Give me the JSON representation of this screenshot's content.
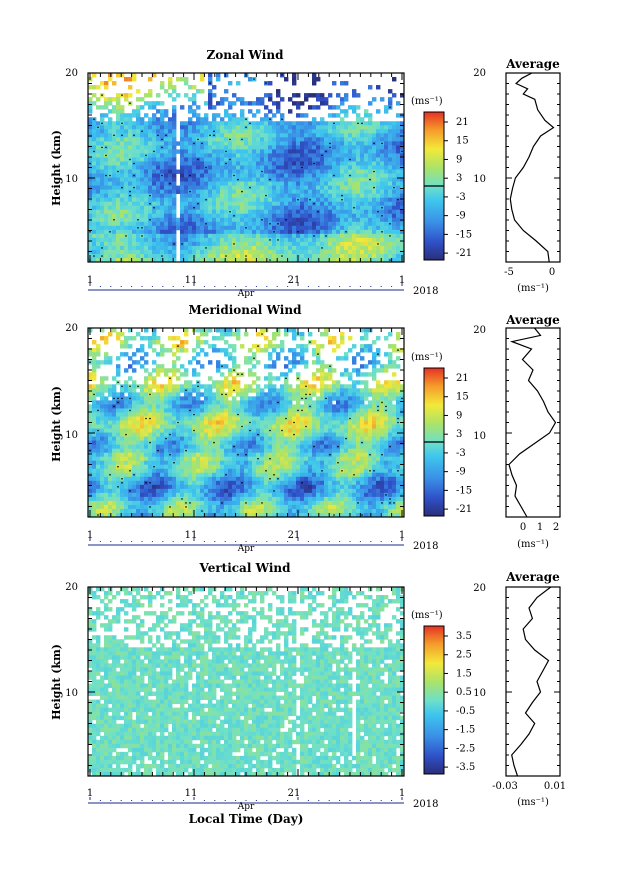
{
  "figure": {
    "xlabel": "Local Time (Day)",
    "month_label": "Apr",
    "year_label": "2018",
    "ylabel": "Height (km)",
    "avg_title": "Average"
  },
  "chart_data": [
    {
      "type": "heatmap",
      "title": "Zonal Wind",
      "xlabel": "Local Time (Day)",
      "ylabel": "Height (km)",
      "x_ticklabels": [
        "1",
        "11",
        "21",
        "1"
      ],
      "y_ticklabels": [
        "10",
        "20"
      ],
      "ylim": [
        2,
        20
      ],
      "unit": "(ms⁻¹)",
      "colorbar": {
        "ticks": [
          "21",
          "15",
          "9",
          "3",
          "-3",
          "-9",
          "-15",
          "-21"
        ],
        "range": [
          -24,
          24
        ]
      },
      "average": {
        "title": "Average",
        "xlabel": "(ms⁻¹)",
        "x_ticklabels": [
          "-5",
          "0"
        ],
        "xlim": [
          -6,
          1.5
        ],
        "profile": [
          [
            2,
            0
          ],
          [
            3,
            -0.2
          ],
          [
            4,
            -1.8
          ],
          [
            5,
            -3.6
          ],
          [
            6,
            -4.8
          ],
          [
            7,
            -5.2
          ],
          [
            8,
            -5.4
          ],
          [
            9,
            -5.1
          ],
          [
            10,
            -4.7
          ],
          [
            11,
            -3.6
          ],
          [
            12,
            -2.8
          ],
          [
            13,
            -2.2
          ],
          [
            14,
            -1.2
          ],
          [
            14.8,
            0.6
          ],
          [
            15.5,
            -0.6
          ],
          [
            16.5,
            -1.6
          ],
          [
            17.5,
            -2.0
          ],
          [
            18,
            -3.6
          ],
          [
            18.5,
            -3.0
          ],
          [
            19,
            -4.6
          ],
          [
            19.5,
            -3.8
          ],
          [
            20,
            -2.4
          ]
        ]
      }
    },
    {
      "type": "heatmap",
      "title": "Meridional Wind",
      "xlabel": "Local Time (Day)",
      "ylabel": "Height (km)",
      "x_ticklabels": [
        "1",
        "11",
        "21",
        "1"
      ],
      "y_ticklabels": [
        "10",
        "20"
      ],
      "ylim": [
        2,
        20
      ],
      "unit": "(ms⁻¹)",
      "colorbar": {
        "ticks": [
          "21",
          "15",
          "9",
          "3",
          "-3",
          "-9",
          "-15",
          "-21"
        ],
        "range": [
          -24,
          24
        ]
      },
      "average": {
        "title": "Average",
        "xlabel": "(ms⁻¹)",
        "x_ticklabels": [
          "0",
          "1",
          "2"
        ],
        "xlim": [
          -1.3,
          2.3
        ],
        "profile": [
          [
            2,
            0.1
          ],
          [
            3,
            -0.3
          ],
          [
            3.5,
            -0.5
          ],
          [
            4,
            -0.7
          ],
          [
            5,
            -0.6
          ],
          [
            6,
            -0.9
          ],
          [
            7,
            -1.1
          ],
          [
            8,
            -0.4
          ],
          [
            9,
            0.6
          ],
          [
            10,
            1.6
          ],
          [
            11,
            2.0
          ],
          [
            12,
            1.5
          ],
          [
            13,
            1.2
          ],
          [
            14,
            0.8
          ],
          [
            15,
            0.2
          ],
          [
            16,
            0.5
          ],
          [
            17,
            -0.2
          ],
          [
            18,
            0.4
          ],
          [
            18.7,
            -0.9
          ],
          [
            19.3,
            1.0
          ],
          [
            20,
            0.6
          ]
        ]
      }
    },
    {
      "type": "heatmap",
      "title": "Vertical Wind",
      "xlabel": "Local Time (Day)",
      "ylabel": "Height (km)",
      "x_ticklabels": [
        "1",
        "11",
        "21",
        "1"
      ],
      "y_ticklabels": [
        "10",
        "20"
      ],
      "ylim": [
        2,
        20
      ],
      "unit": "(ms⁻¹)",
      "colorbar": {
        "ticks": [
          "3.5",
          "2.5",
          "1.5",
          "0.5",
          "-0.5",
          "-1.5",
          "-2.5",
          "-3.5"
        ],
        "range": [
          -4,
          4
        ]
      },
      "average": {
        "title": "Average",
        "xlabel": "(ms⁻¹)",
        "x_ticklabels": [
          "-0.03",
          "0.01"
        ],
        "xlim": [
          -0.035,
          0.012
        ],
        "profile": [
          [
            2,
            -0.025
          ],
          [
            3,
            -0.028
          ],
          [
            4,
            -0.03
          ],
          [
            5,
            -0.022
          ],
          [
            6,
            -0.015
          ],
          [
            7,
            -0.01
          ],
          [
            8,
            -0.018
          ],
          [
            9,
            -0.012
          ],
          [
            10,
            -0.005
          ],
          [
            11,
            -0.008
          ],
          [
            12,
            -0.003
          ],
          [
            13,
            0.002
          ],
          [
            14,
            -0.01
          ],
          [
            15,
            -0.018
          ],
          [
            16,
            -0.02
          ],
          [
            17,
            -0.012
          ],
          [
            18,
            -0.015
          ],
          [
            19,
            -0.008
          ],
          [
            20,
            0.004
          ]
        ]
      }
    }
  ]
}
